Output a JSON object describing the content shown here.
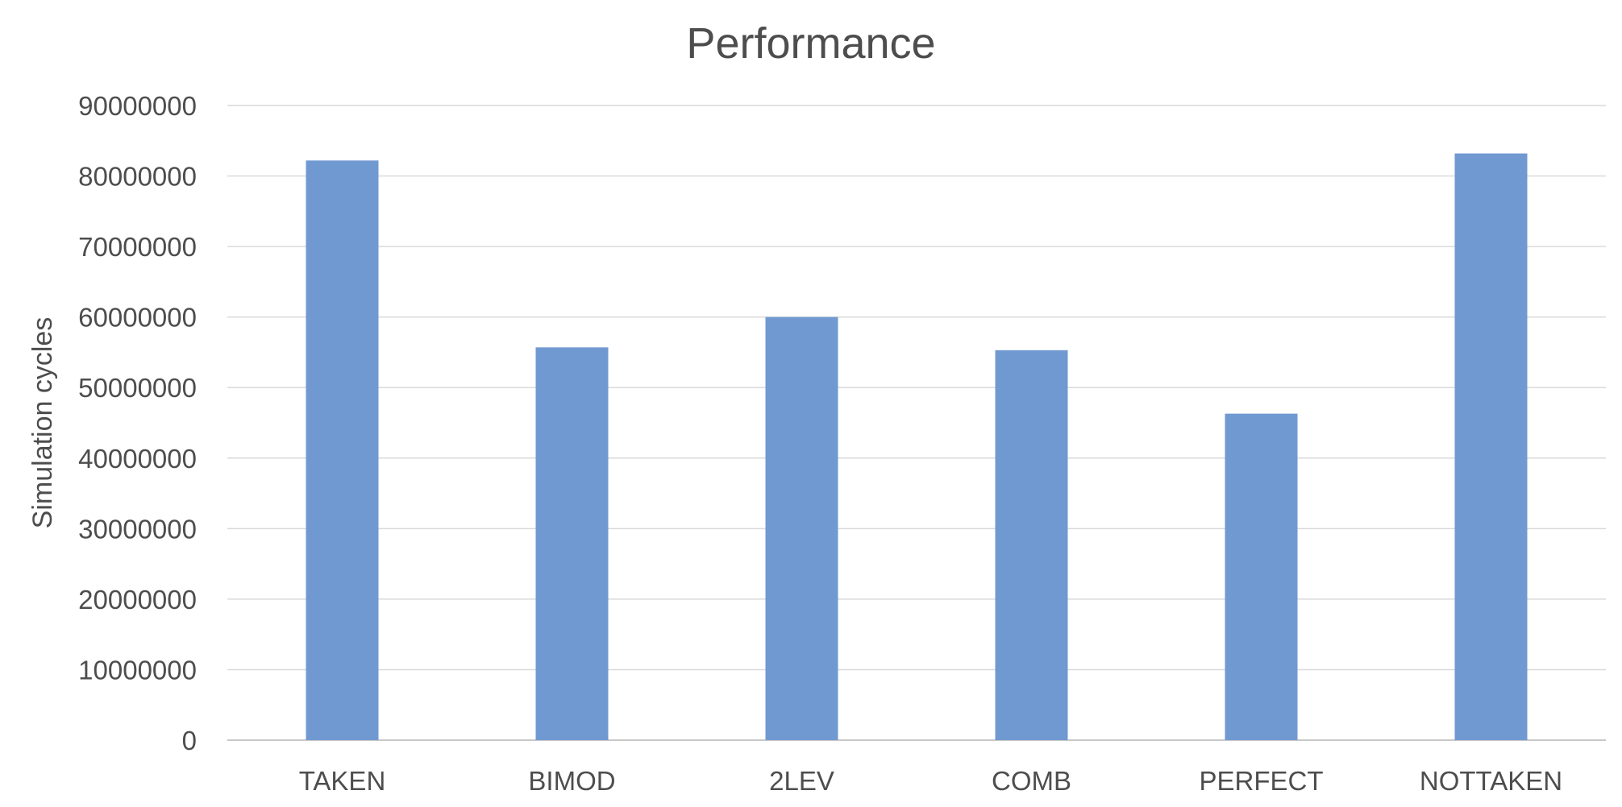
{
  "chart_data": {
    "type": "bar",
    "title": "Performance",
    "xlabel": "",
    "ylabel": "Simulation cycles",
    "categories": [
      "TAKEN",
      "BIMOD",
      "2LEV",
      "COMB",
      "PERFECT",
      "NOTTAKEN"
    ],
    "values": [
      82200000,
      55700000,
      60000000,
      55300000,
      46300000,
      83200000
    ],
    "ylim": [
      0,
      90000000
    ],
    "yticks": [
      0,
      10000000,
      20000000,
      30000000,
      40000000,
      50000000,
      60000000,
      70000000,
      80000000,
      90000000
    ],
    "ytick_labels": [
      "0",
      "10000000",
      "20000000",
      "30000000",
      "40000000",
      "50000000",
      "60000000",
      "70000000",
      "80000000",
      "90000000"
    ],
    "grid": true,
    "legend": "none",
    "colors": {
      "bar": "#7199d1",
      "gridline": "#d9d9d9",
      "text": "#4d4d4d"
    }
  }
}
